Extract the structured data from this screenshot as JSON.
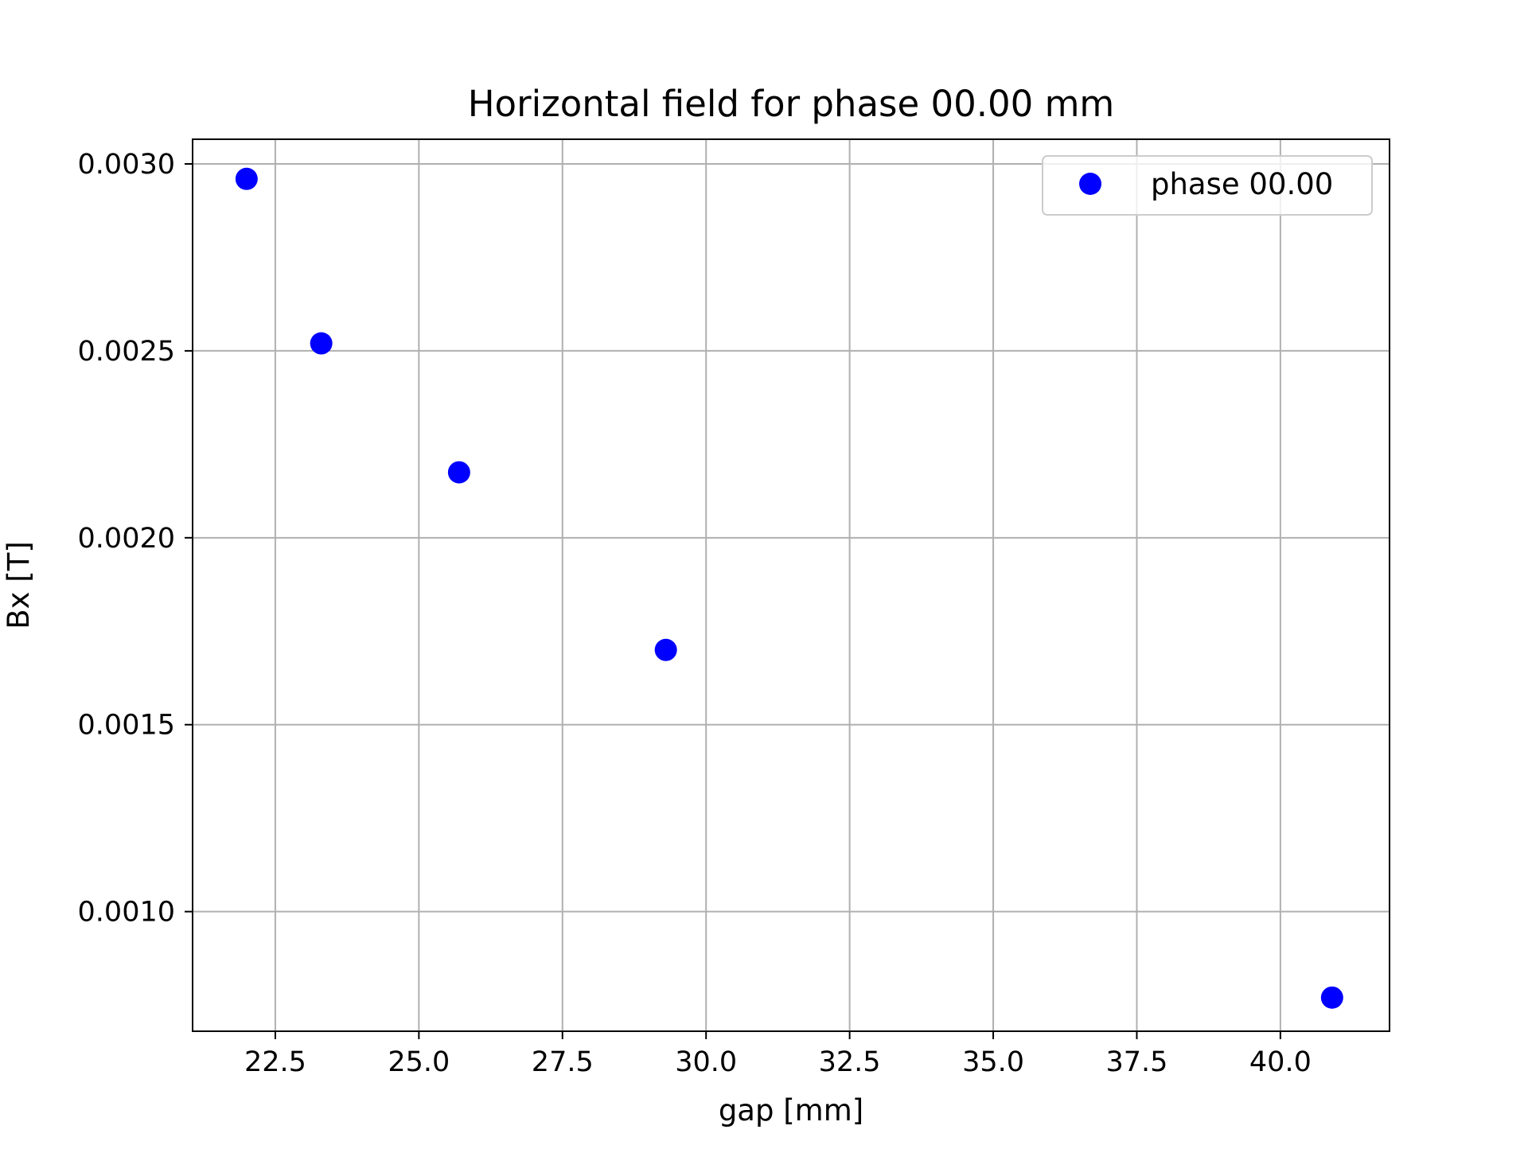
{
  "chart_data": {
    "type": "scatter",
    "title": "Horizontal field for phase 00.00 mm",
    "xlabel": "gap [mm]",
    "ylabel": "Bx [T]",
    "xlim": [
      21.06,
      41.9
    ],
    "ylim": [
      0.00068,
      0.003066
    ],
    "xticks": [
      22.5,
      25.0,
      27.5,
      30.0,
      32.5,
      35.0,
      37.5,
      40.0
    ],
    "xtick_labels": [
      "22.5",
      "25.0",
      "27.5",
      "30.0",
      "32.5",
      "35.0",
      "37.5",
      "40.0"
    ],
    "yticks": [
      0.001,
      0.0015,
      0.002,
      0.0025,
      0.003
    ],
    "ytick_labels": [
      "0.0010",
      "0.0015",
      "0.0020",
      "0.0025",
      "0.0030"
    ],
    "grid": true,
    "legend_position": "upper right",
    "series": [
      {
        "name": "phase 00.00",
        "color": "#0000ff",
        "marker": "circle",
        "x": [
          22.0,
          23.3,
          25.7,
          29.3,
          40.9
        ],
        "y": [
          0.00296,
          0.00252,
          0.002175,
          0.0017,
          0.00077
        ]
      }
    ]
  }
}
